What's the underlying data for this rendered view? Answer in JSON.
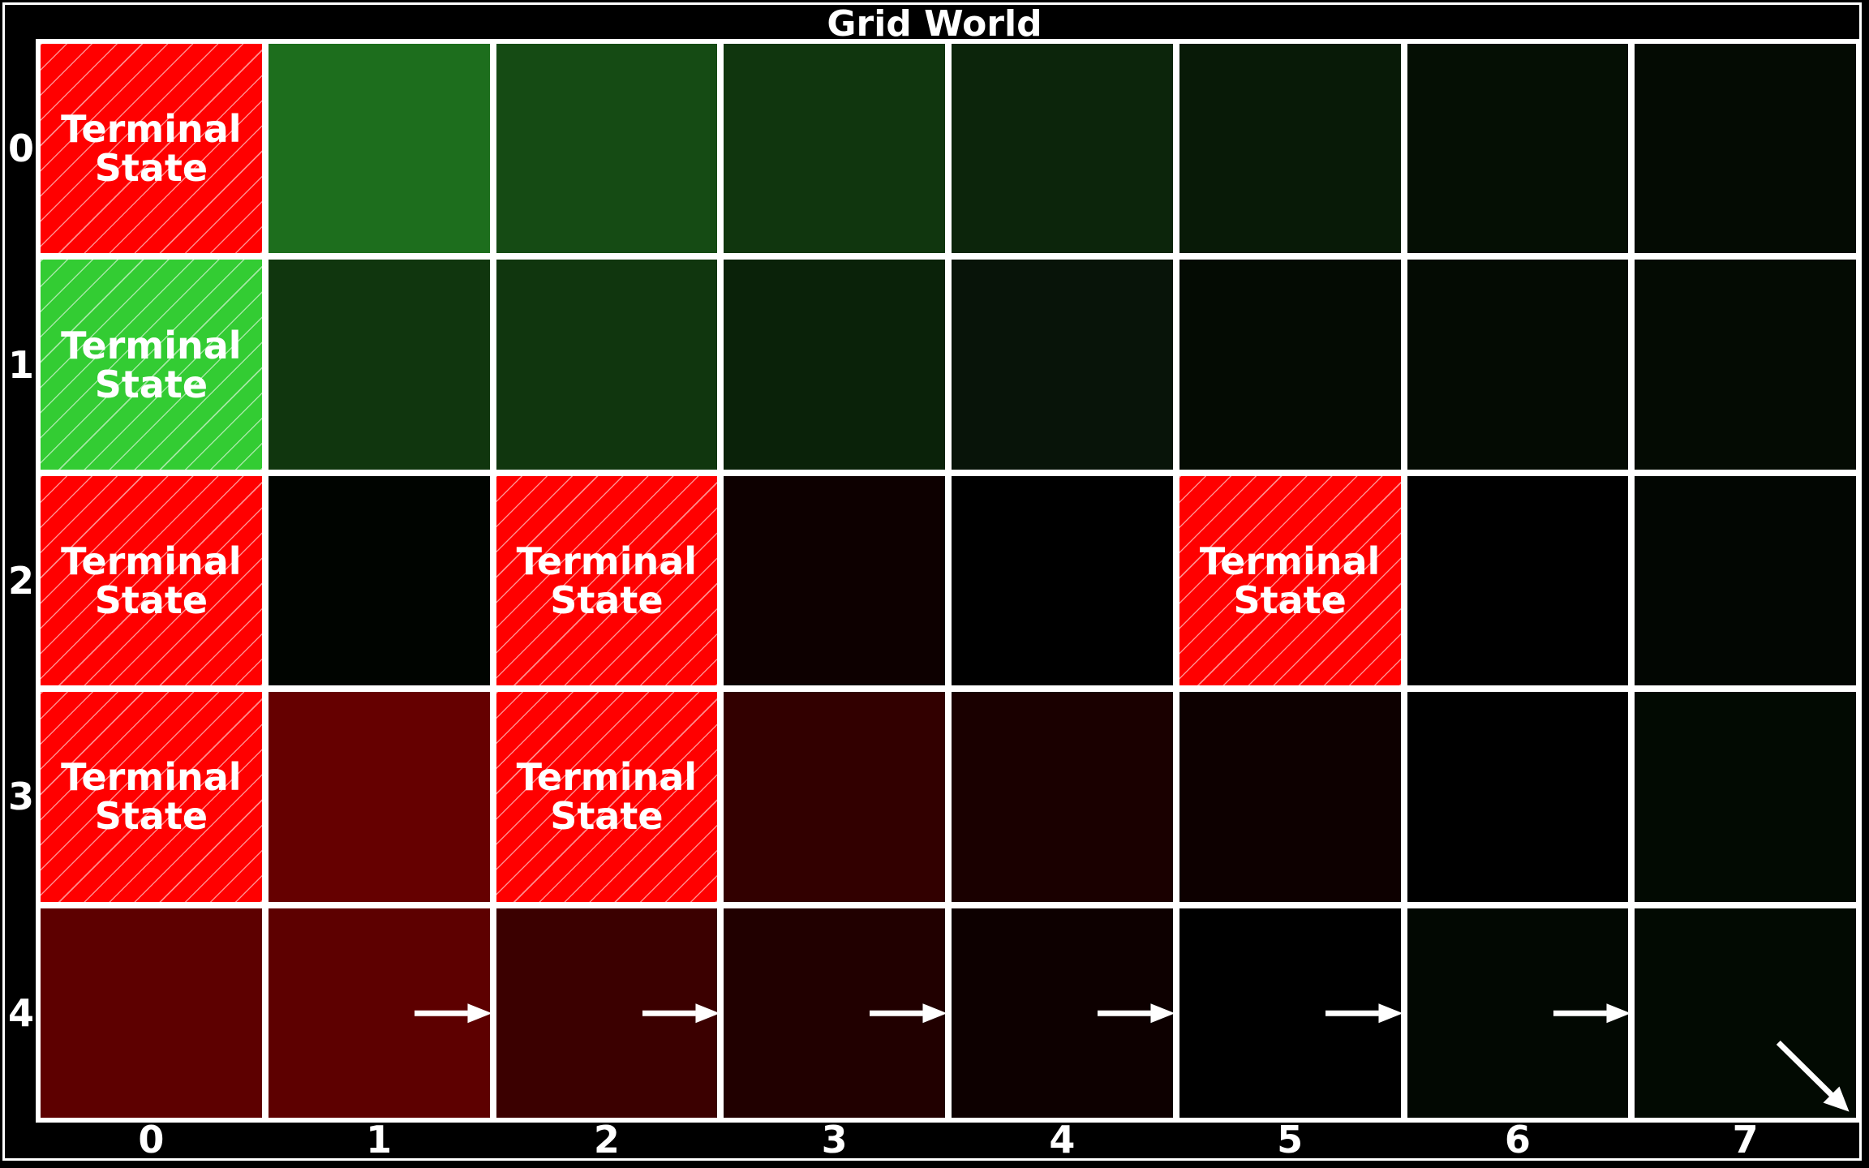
{
  "title": "Grid World",
  "terminal_label_line1": "Terminal",
  "terminal_label_line2": "State",
  "x_ticks": [
    "0",
    "1",
    "2",
    "3",
    "4",
    "5",
    "6",
    "7"
  ],
  "y_ticks": [
    "0",
    "1",
    "2",
    "3",
    "4"
  ],
  "colors": {
    "background": "#000000",
    "gridline": "#ffffff",
    "terminal_negative": "#ff0000",
    "terminal_positive": "#33cc33"
  },
  "grid": [
    [
      {
        "terminal": "negative",
        "color": "#ff0000"
      },
      {
        "color": "#1d6e1d"
      },
      {
        "color": "#154b14"
      },
      {
        "color": "#10360e"
      },
      {
        "color": "#0c250b"
      },
      {
        "color": "#081a07"
      },
      {
        "color": "#050f04"
      },
      {
        "color": "#040b03"
      }
    ],
    [
      {
        "terminal": "positive",
        "color": "#33cc33"
      },
      {
        "color": "#10360e"
      },
      {
        "color": "#10360e"
      },
      {
        "color": "#0a2209"
      },
      {
        "color": "#081409"
      },
      {
        "color": "#040b03"
      },
      {
        "color": "#040b03"
      },
      {
        "color": "#040b03"
      }
    ],
    [
      {
        "terminal": "negative",
        "color": "#ff0000"
      },
      {
        "color": "#000400"
      },
      {
        "terminal": "negative",
        "color": "#ff0000"
      },
      {
        "color": "#0d0000"
      },
      {
        "color": "#000000"
      },
      {
        "terminal": "negative",
        "color": "#ff0000"
      },
      {
        "color": "#000000"
      },
      {
        "color": "#020602"
      }
    ],
    [
      {
        "terminal": "negative",
        "color": "#ff0000"
      },
      {
        "color": "#650000"
      },
      {
        "terminal": "negative",
        "color": "#ff0000"
      },
      {
        "color": "#320000"
      },
      {
        "color": "#1a0000"
      },
      {
        "color": "#0d0000"
      },
      {
        "color": "#000000"
      },
      {
        "color": "#020a02"
      }
    ],
    [
      {
        "color": "#5d0000"
      },
      {
        "color": "#5d0000",
        "arrow": "right"
      },
      {
        "color": "#3b0000",
        "arrow": "right"
      },
      {
        "color": "#210000",
        "arrow": "right"
      },
      {
        "color": "#0d0000",
        "arrow": "right"
      },
      {
        "color": "#000000",
        "arrow": "right"
      },
      {
        "color": "#020802",
        "arrow": "right"
      },
      {
        "color": "#020a02",
        "arrow": "down-right"
      }
    ]
  ]
}
